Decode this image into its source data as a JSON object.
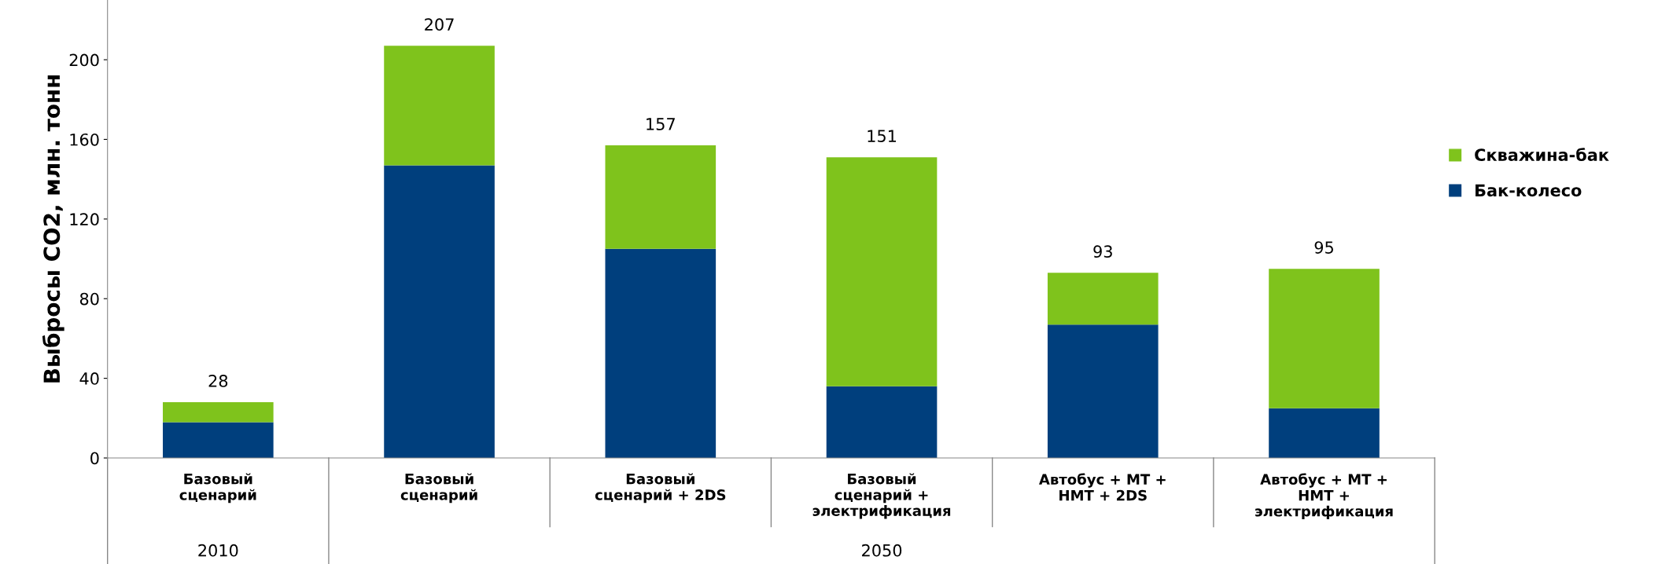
{
  "chart_data": {
    "type": "bar",
    "stacked": true,
    "ylabel": "Выбросы CO2, млн. тонн",
    "categories": [
      "Базовый\nсценарий",
      "Базовый\nсценарий",
      "Базовый\nсценарий + 2DS",
      "Базовый\nсценарий +\nэлектрификация",
      "Автобус + МТ +\nНМТ + 2DS",
      "Автобус + МТ +\nНМТ +\nэлектрификация"
    ],
    "series": [
      {
        "name": "Бак-колесо",
        "color": "#003f7d",
        "values": [
          18,
          147,
          105,
          36,
          67,
          25
        ]
      },
      {
        "name": "Скважина-бак",
        "color": "#7fc31c",
        "values": [
          10,
          60,
          52,
          115,
          26,
          70
        ]
      }
    ],
    "totals": [
      "28",
      "207",
      "157",
      "151",
      "93",
      "95"
    ],
    "annotations": [
      "2010",
      "2050"
    ],
    "ylim": [
      0,
      230
    ],
    "yticks": [
      0,
      40,
      80,
      120,
      160,
      200
    ],
    "grid": false,
    "legend": "right"
  }
}
